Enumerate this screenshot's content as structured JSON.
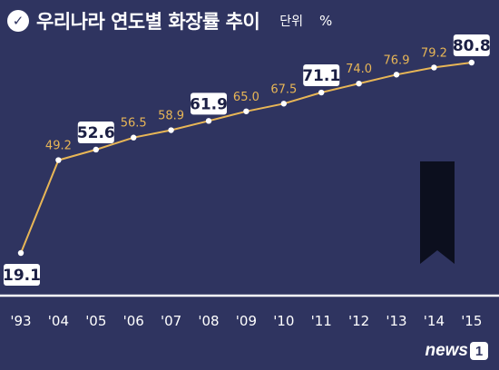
{
  "header": {
    "title": "우리나라 연도별 화장률 추이",
    "unit_label": "단위",
    "unit_symbol": "%",
    "check_icon": "check-icon"
  },
  "watermark": {
    "text": "news",
    "badge": "1"
  },
  "colors": {
    "background": "#2f3460",
    "line": "#e8b656",
    "label": "#e8b656",
    "highlight_box": "#ffffff",
    "highlight_text": "#1b1f44",
    "mourning_ribbon": "#0c0f1e",
    "axis": "#ffffff"
  },
  "chart_data": {
    "type": "line",
    "title": "우리나라 연도별 화장률 추이",
    "ylabel": "%",
    "categories": [
      "'93",
      "'04",
      "'05",
      "'06",
      "'07",
      "'08",
      "'09",
      "'10",
      "'11",
      "'12",
      "'13",
      "'14",
      "'15"
    ],
    "series": [
      {
        "values": [
          19.1,
          49.2,
          52.6,
          56.5,
          58.9,
          61.9,
          65.0,
          67.5,
          71.1,
          74.0,
          76.9,
          79.2,
          80.8
        ],
        "labels": [
          "19.1",
          "49.2",
          "52.6",
          "56.5",
          "58.9",
          "61.9",
          "65.0",
          "67.5",
          "71.1",
          "74.0",
          "76.9",
          "79.2",
          "80.8"
        ]
      }
    ],
    "highlighted": [
      "'93",
      "'05",
      "'08",
      "'11",
      "'15"
    ],
    "ylim": [
      19.1,
      80.8
    ],
    "grid": false,
    "legend": "none"
  }
}
